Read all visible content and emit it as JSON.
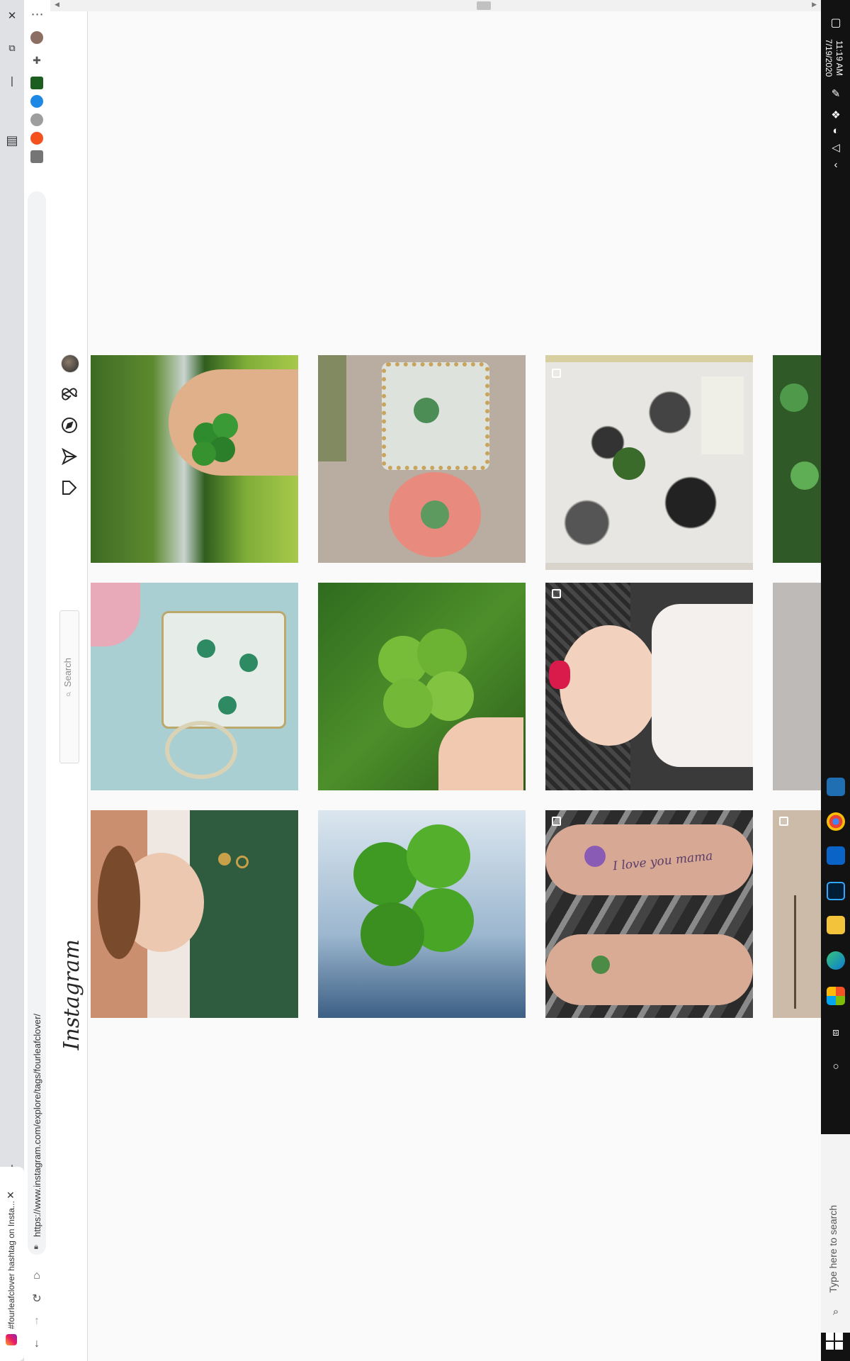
{
  "browser": {
    "tab": {
      "title": "#fourleafclover hashtag on Insta...",
      "close_glyph": "✕"
    },
    "url": "https://www.instagram.com/explore/tags/fourleafclover/",
    "new_tab_glyph": "+"
  },
  "instagram": {
    "logo_text": "Instagram",
    "search_placeholder": "Search"
  },
  "taskbar": {
    "time": "11:19 AM",
    "date": "7/19/2020",
    "search_placeholder": "Type here to search"
  },
  "posts": [
    {
      "id": "ring-hand-clover",
      "row": 1,
      "col": 1,
      "multi": false
    },
    {
      "id": "resin-coasters-clover",
      "row": 1,
      "col": 2,
      "multi": false
    },
    {
      "id": "marble-art-clover",
      "row": 1,
      "col": 3,
      "multi": true
    },
    {
      "id": "clover-patch",
      "row": 1,
      "col": 4,
      "multi": false
    },
    {
      "id": "painted-teacup",
      "row": 2,
      "col": 1,
      "multi": false
    },
    {
      "id": "clover-in-grass",
      "row": 2,
      "col": 2,
      "multi": false
    },
    {
      "id": "toddler-red-bow",
      "row": 2,
      "col": 3,
      "multi": true
    },
    {
      "id": "grey-wall",
      "row": 2,
      "col": 4,
      "multi": false
    },
    {
      "id": "woman-green-shirt",
      "row": 3,
      "col": 1,
      "multi": false
    },
    {
      "id": "clover-on-ice",
      "row": 3,
      "col": 2,
      "multi": false
    },
    {
      "id": "arm-tattoos",
      "row": 3,
      "col": 3,
      "multi": true
    },
    {
      "id": "beach-tree",
      "row": 3,
      "col": 4,
      "multi": true
    }
  ],
  "tattoo_text": "I love you mama",
  "colors": {
    "instagram_border": "#dbdbdb",
    "taskbar": "#121212",
    "clover_green": "#3c8d2f"
  }
}
